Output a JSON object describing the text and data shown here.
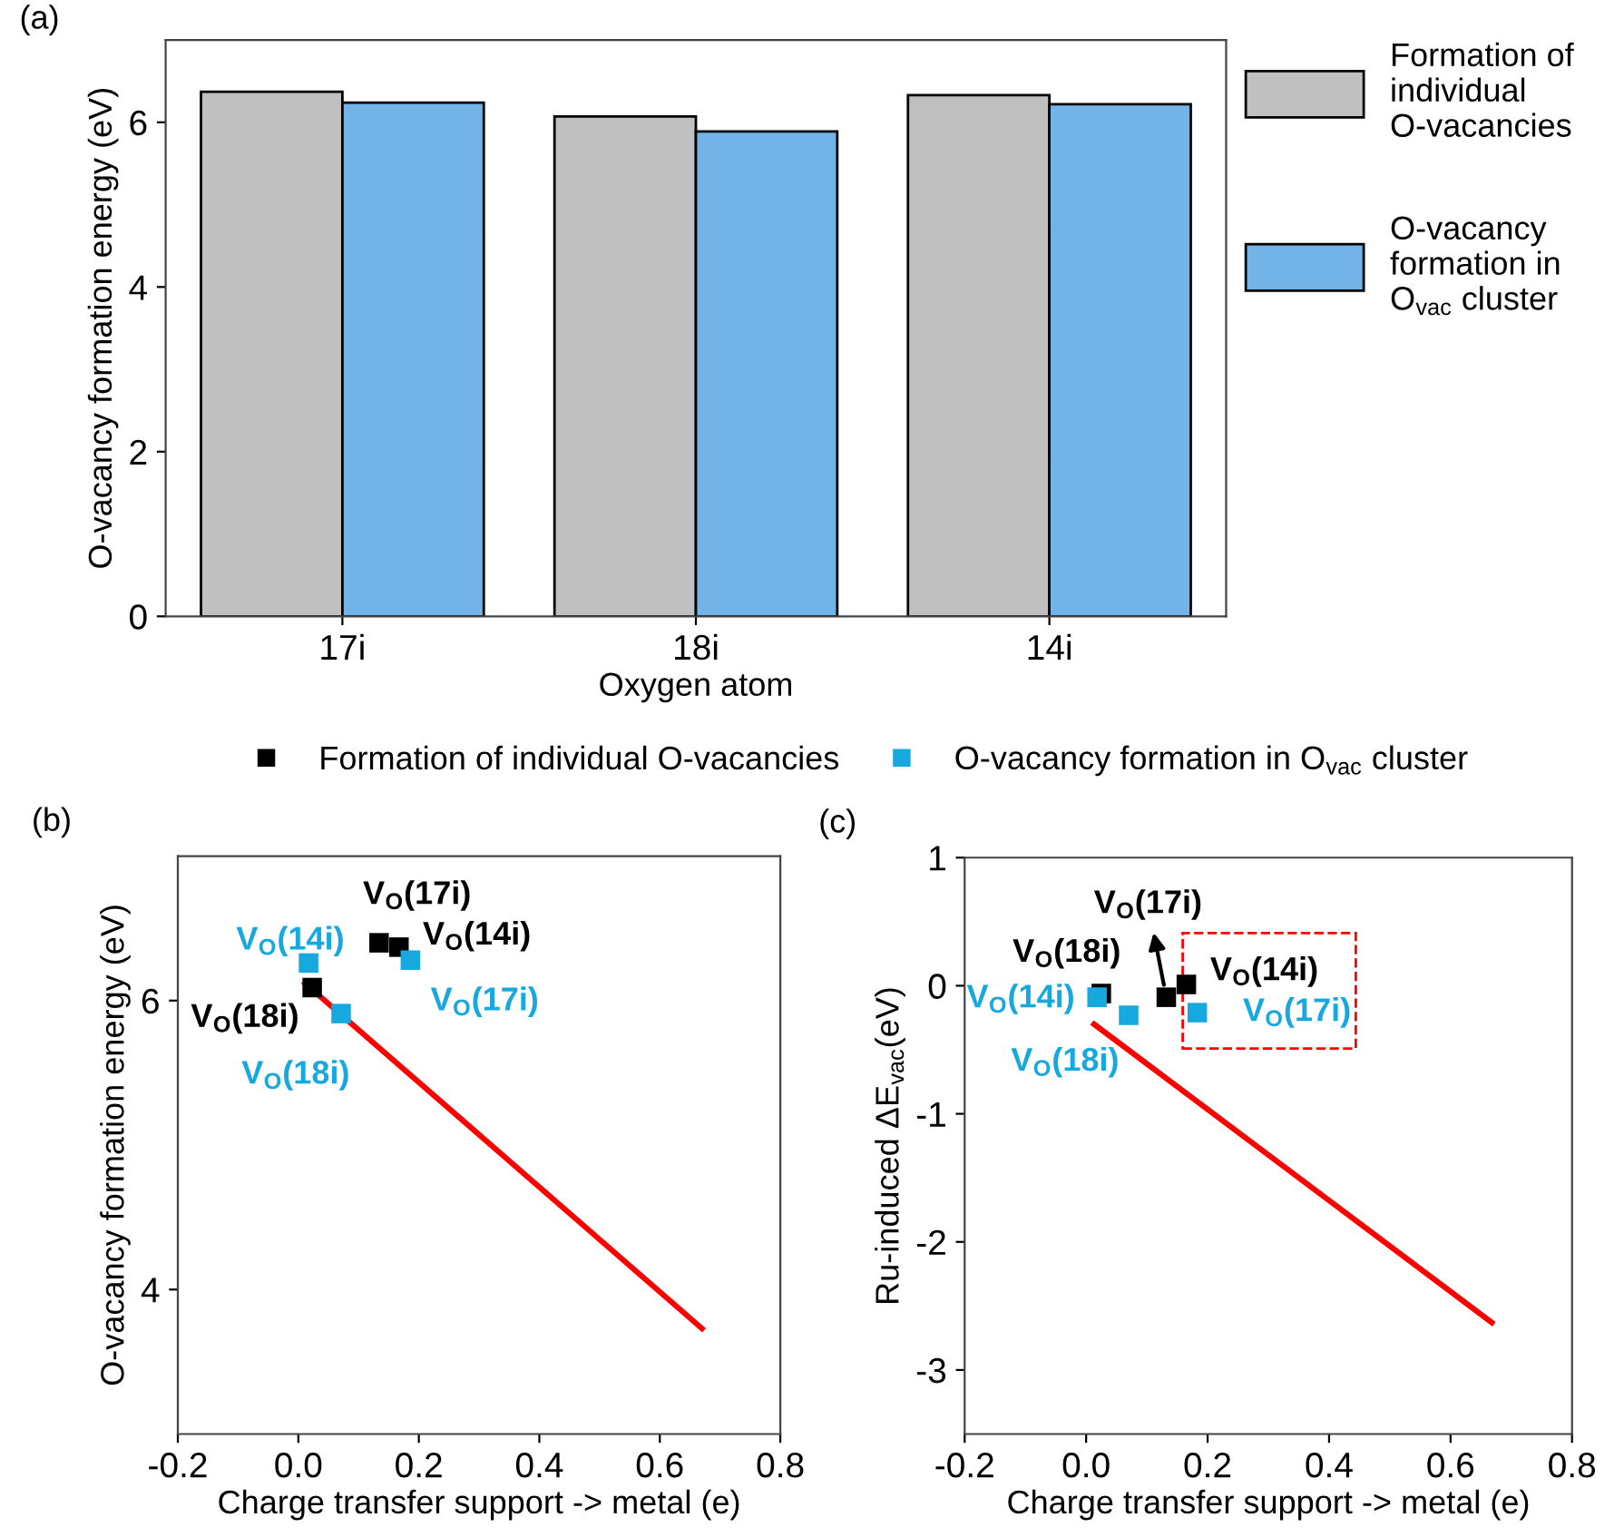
{
  "chart_data": [
    {
      "type": "bar",
      "categories": [
        "17i",
        "18i",
        "14i"
      ],
      "xlabel": "Oxygen atom",
      "ylabel": "O-vacancy formation energy (eV)",
      "ylim": [
        0,
        7
      ],
      "yticks": [
        0,
        2,
        4,
        6
      ],
      "legend": "right",
      "grid": false,
      "annotations": [
        "(a)"
      ],
      "series": [
        {
          "name": "Formation of\nindividual\nO-vacancies",
          "color": "#c0c0c0",
          "values": [
            6.37,
            6.07,
            6.33
          ]
        },
        {
          "name": "O-vacancy\nformation in\nO$_{vac}$ cluster",
          "color": "#72b4e8",
          "values": [
            6.24,
            5.89,
            6.22
          ]
        }
      ]
    },
    {
      "type": "scatter",
      "xlabel": "Charge transfer support -> metal (e)",
      "ylabel": "O-vacancy formation energy (eV)",
      "xlim": [
        -0.2,
        0.8
      ],
      "xticks": [
        -0.2,
        {
          "value": 0,
          "label": "0.0"
        },
        0.2,
        0.4,
        0.6,
        0.8
      ],
      "ylim": [
        3,
        7
      ],
      "yticks": [
        4,
        6
      ],
      "legend": "top",
      "grid": false,
      "annotations": [
        "(b)",
        {
          "text": "V$_{O}$(17i)",
          "x": 0.134,
          "y": 6.4
        },
        {
          "text": "V$_{O}$(14i)",
          "x": 0.167,
          "y": 6.37
        },
        {
          "text": "V$_{O}$(18i)",
          "x": 0.023,
          "y": 6.09
        },
        {
          "text": "V$_{O}$(14i)",
          "x": 0.017,
          "y": 6.26
        },
        {
          "text": "V$_{O}$(18i)",
          "x": 0.071,
          "y": 5.91
        },
        {
          "text": "V$_{O}$(17i)",
          "x": 0.186,
          "y": 6.28
        }
      ],
      "series": [
        {
          "name": "Formation of individual O-vacancies",
          "color": "#000000",
          "marker": "square",
          "x": [
            0.134,
            0.167,
            0.023
          ],
          "values": [
            6.4,
            6.37,
            6.09
          ]
        },
        {
          "name": "O-vacancy formation in O$_{vac}$ cluster",
          "color": "#18a8e0",
          "marker": "square",
          "x": [
            0.017,
            0.071,
            0.186
          ],
          "values": [
            6.26,
            5.91,
            6.28
          ]
        },
        {
          "type": "line",
          "color": "#ff0000",
          "marker": "none",
          "x": [
            0.011,
            0.67
          ],
          "values": [
            6.12,
            3.73
          ]
        }
      ]
    },
    {
      "type": "scatter",
      "xlabel": "Charge transfer support -> metal (e)",
      "ylabel": "Ru-induced ΔE$_{vac}$(eV)",
      "xlim": [
        -0.2,
        0.8
      ],
      "xticks": [
        -0.2,
        {
          "value": 0,
          "label": "0.0"
        },
        0.2,
        0.4,
        0.6,
        0.8
      ],
      "ylim": [
        -3.5,
        1
      ],
      "yticks": [
        -3,
        -2,
        -1,
        0,
        1
      ],
      "grid": false,
      "annotations": [
        "(c)",
        {
          "text": "V$_{O}$(18i)",
          "x": 0.025,
          "y": -0.06
        },
        {
          "text": "V$_{O}$(17i)",
          "x": 0.132,
          "y": -0.09
        },
        {
          "text": "V$_{O}$(14i)",
          "x": 0.165,
          "y": 0.01
        },
        {
          "text": "V$_{O}$(14i)",
          "x": 0.018,
          "y": -0.09
        },
        {
          "text": "V$_{O}$(18i)",
          "x": 0.07,
          "y": -0.23
        },
        {
          "text": "V$_{O}$(17i)",
          "x": 0.183,
          "y": -0.21
        }
      ],
      "series": [
        {
          "color": "#000000",
          "marker": "square",
          "x": [
            0.025,
            0.132,
            0.165
          ],
          "values": [
            -0.06,
            -0.09,
            0.01
          ]
        },
        {
          "color": "#18a8e0",
          "marker": "square",
          "x": [
            0.018,
            0.07,
            0.183
          ],
          "values": [
            -0.09,
            -0.23,
            -0.21
          ]
        },
        {
          "type": "line",
          "color": "#ff0000",
          "marker": "none",
          "x": [
            0.013,
            0.668
          ],
          "values": [
            -0.3,
            -2.63
          ]
        }
      ]
    }
  ]
}
